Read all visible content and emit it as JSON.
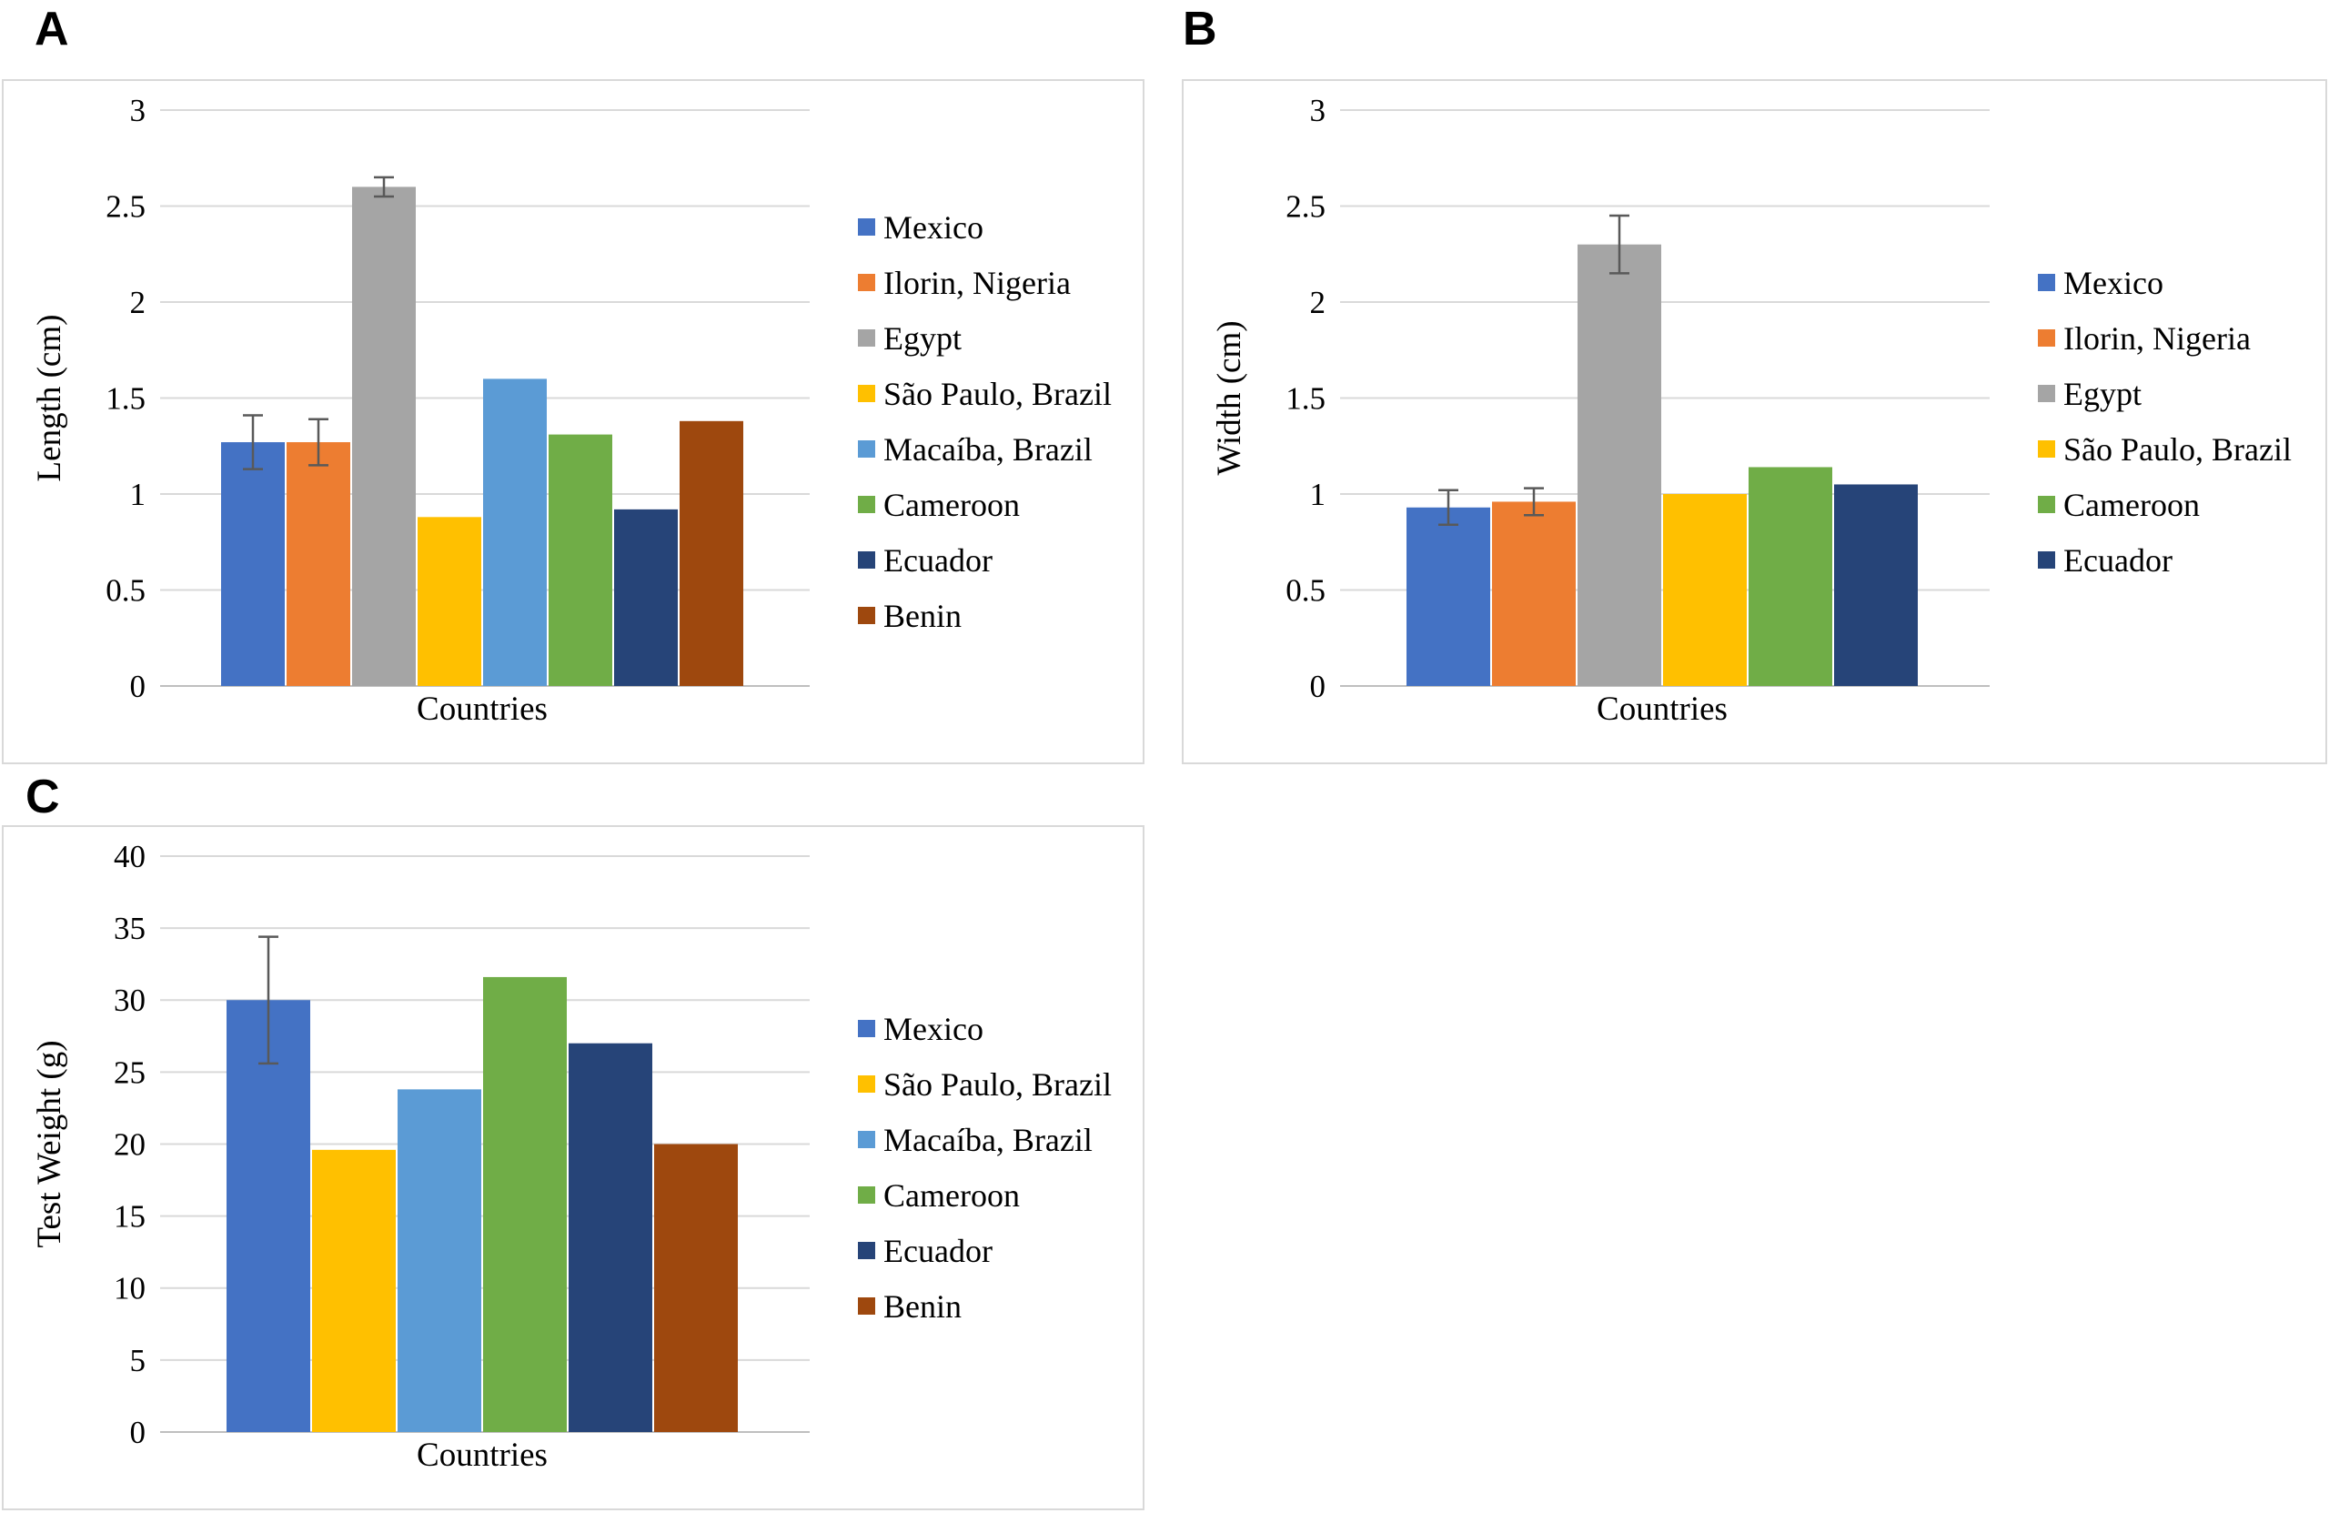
{
  "figure": {
    "panels": [
      {
        "label": "A"
      },
      {
        "label": "B"
      },
      {
        "label": "C"
      }
    ]
  },
  "colors": {
    "Mexico": "#4472C4",
    "Ilorin, Nigeria": "#ED7D31",
    "Egypt": "#A5A5A5",
    "São Paulo, Brazil": "#FFC000",
    "Macaíba, Brazil": "#5B9BD5",
    "Cameroon": "#70AD47",
    "Ecuador": "#264478",
    "Benin": "#9E480E"
  },
  "style_colors": {
    "gridline": "#D9D9D9",
    "axis_line": "#BFBFBF",
    "error_bar": "#595959",
    "panel_border": "#D9D9D9"
  },
  "chart_data": [
    {
      "type": "bar",
      "panel": "A",
      "title": "",
      "xlabel": "Countries",
      "ylabel": "Length (cm)",
      "ylim": [
        0,
        3
      ],
      "yticks": [
        0,
        0.5,
        1,
        1.5,
        2,
        2.5,
        3
      ],
      "grid": true,
      "legend_position": "right",
      "categories": [
        "Mexico",
        "Ilorin, Nigeria",
        "Egypt",
        "São Paulo, Brazil",
        "Macaíba, Brazil",
        "Cameroon",
        "Ecuador",
        "Benin"
      ],
      "values": [
        1.27,
        1.27,
        2.6,
        0.88,
        1.6,
        1.31,
        0.92,
        1.38
      ],
      "errors": [
        0.14,
        0.12,
        0.05,
        null,
        null,
        null,
        null,
        null
      ]
    },
    {
      "type": "bar",
      "panel": "B",
      "title": "",
      "xlabel": "Countries",
      "ylabel": "Width (cm)",
      "ylim": [
        0,
        3
      ],
      "yticks": [
        0,
        0.5,
        1,
        1.5,
        2,
        2.5,
        3
      ],
      "grid": true,
      "legend_position": "right",
      "categories": [
        "Mexico",
        "Ilorin, Nigeria",
        "Egypt",
        "São Paulo, Brazil",
        "Cameroon",
        "Ecuador"
      ],
      "values": [
        0.93,
        0.96,
        2.3,
        1.0,
        1.14,
        1.05
      ],
      "errors": [
        0.09,
        0.07,
        0.15,
        null,
        null,
        null
      ]
    },
    {
      "type": "bar",
      "panel": "C",
      "title": "",
      "xlabel": "Countries",
      "ylabel": "Test Weight (g)",
      "ylim": [
        0,
        40
      ],
      "yticks": [
        0,
        5,
        10,
        15,
        20,
        25,
        30,
        35,
        40
      ],
      "grid": true,
      "legend_position": "right",
      "categories": [
        "Mexico",
        "São Paulo, Brazil",
        "Macaíba, Brazil",
        "Cameroon",
        "Ecuador",
        "Benin"
      ],
      "values": [
        30.0,
        19.6,
        23.8,
        31.6,
        27.0,
        20.0
      ],
      "errors": [
        4.4,
        null,
        null,
        null,
        null,
        null
      ]
    }
  ]
}
